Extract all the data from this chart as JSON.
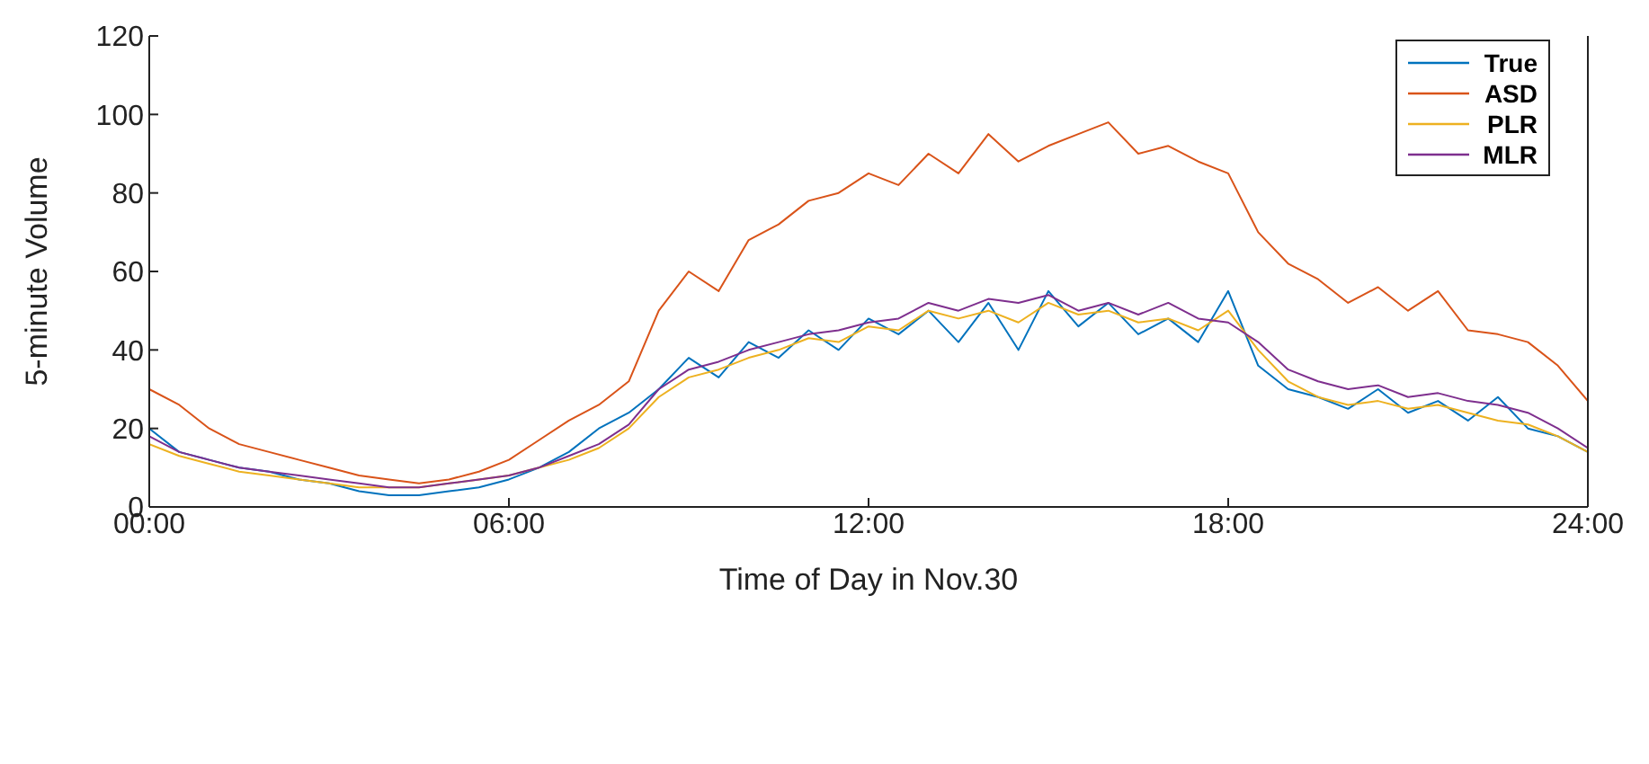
{
  "chart_data": {
    "type": "line",
    "xlabel": "Time of Day in Nov.30",
    "ylabel": "5-minute Volume",
    "x": [
      0,
      0.5,
      1,
      1.5,
      2,
      2.5,
      3,
      3.5,
      4,
      4.5,
      5,
      5.5,
      6,
      6.5,
      7,
      7.5,
      8,
      8.5,
      9,
      9.5,
      10,
      10.5,
      11,
      11.5,
      12,
      12.5,
      13,
      13.5,
      14,
      14.5,
      15,
      15.5,
      16,
      16.5,
      17,
      17.5,
      18,
      18.5,
      19,
      19.5,
      20,
      20.5,
      21,
      21.5,
      22,
      22.5,
      23,
      23.5,
      24
    ],
    "series": [
      {
        "name": "True",
        "color": "#0072bd",
        "values": [
          20,
          14,
          12,
          10,
          9,
          7,
          6,
          4,
          3,
          3,
          4,
          5,
          7,
          10,
          14,
          20,
          24,
          30,
          38,
          33,
          42,
          38,
          45,
          40,
          48,
          44,
          50,
          42,
          52,
          40,
          55,
          46,
          52,
          44,
          48,
          42,
          55,
          36,
          30,
          28,
          25,
          30,
          24,
          27,
          22,
          28,
          20,
          18,
          14
        ]
      },
      {
        "name": "ASD",
        "color": "#d95319",
        "values": [
          30,
          26,
          20,
          16,
          14,
          12,
          10,
          8,
          7,
          6,
          7,
          9,
          12,
          17,
          22,
          26,
          32,
          50,
          60,
          55,
          68,
          72,
          78,
          80,
          85,
          82,
          90,
          85,
          95,
          88,
          92,
          95,
          98,
          90,
          92,
          88,
          85,
          70,
          62,
          58,
          52,
          56,
          50,
          55,
          45,
          44,
          42,
          36,
          27
        ]
      },
      {
        "name": "PLR",
        "color": "#edb120",
        "values": [
          16,
          13,
          11,
          9,
          8,
          7,
          6,
          5,
          5,
          5,
          6,
          7,
          8,
          10,
          12,
          15,
          20,
          28,
          33,
          35,
          38,
          40,
          43,
          42,
          46,
          45,
          50,
          48,
          50,
          47,
          52,
          49,
          50,
          47,
          48,
          45,
          50,
          40,
          32,
          28,
          26,
          27,
          25,
          26,
          24,
          22,
          21,
          18,
          14
        ]
      },
      {
        "name": "MLR",
        "color": "#7e2f8e",
        "values": [
          18,
          14,
          12,
          10,
          9,
          8,
          7,
          6,
          5,
          5,
          6,
          7,
          8,
          10,
          13,
          16,
          21,
          30,
          35,
          37,
          40,
          42,
          44,
          45,
          47,
          48,
          52,
          50,
          53,
          52,
          54,
          50,
          52,
          49,
          52,
          48,
          47,
          42,
          35,
          32,
          30,
          31,
          28,
          29,
          27,
          26,
          24,
          20,
          15
        ]
      }
    ],
    "xlim": [
      0,
      24
    ],
    "xticks": [
      {
        "value": 0,
        "label": "00:00"
      },
      {
        "value": 6,
        "label": "06:00"
      },
      {
        "value": 12,
        "label": "12:00"
      },
      {
        "value": 18,
        "label": "18:00"
      },
      {
        "value": 24,
        "label": "24:00"
      }
    ],
    "ylim": [
      0,
      120
    ],
    "yticks": [
      0,
      20,
      40,
      60,
      80,
      100,
      120
    ],
    "grid": false,
    "legend": "top right"
  }
}
